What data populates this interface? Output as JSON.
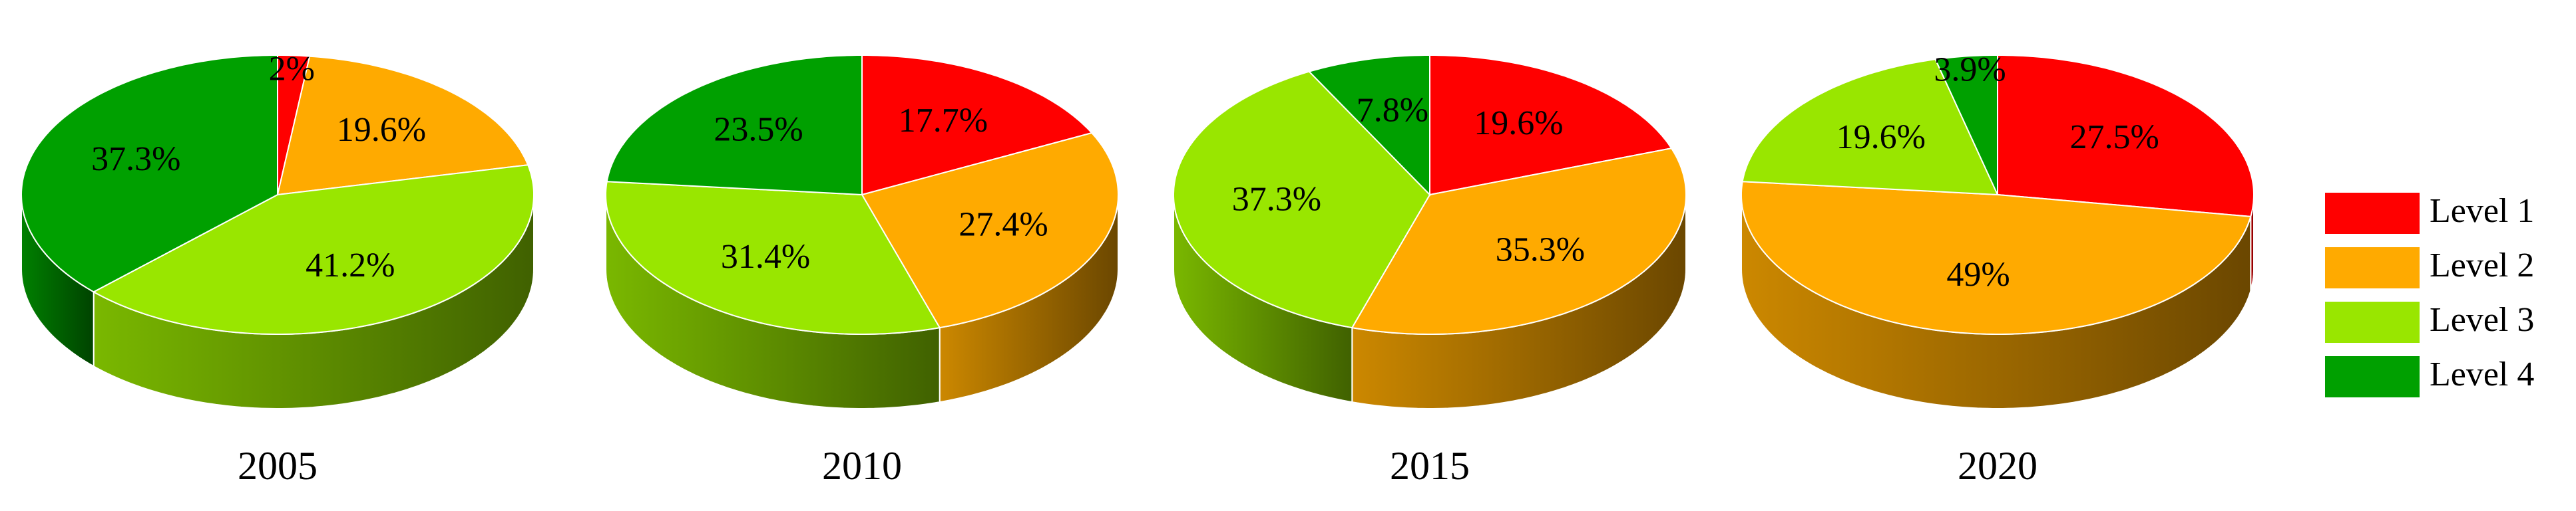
{
  "chart_data": [
    {
      "type": "pie3d",
      "title": "2005",
      "categories": [
        "Level 1",
        "Level 2",
        "Level 3",
        "Level 4"
      ],
      "values": [
        2,
        19.6,
        41.2,
        37.3
      ],
      "value_labels": [
        "2%",
        "19.6%",
        "41.2%",
        "37.3%"
      ],
      "colors": [
        "#ff0000",
        "#ffaa00",
        "#99e600",
        "#00a000"
      ]
    },
    {
      "type": "pie3d",
      "title": "2010",
      "categories": [
        "Level 1",
        "Level 2",
        "Level 3",
        "Level 4"
      ],
      "values": [
        17.7,
        27.4,
        31.4,
        23.5
      ],
      "value_labels": [
        "17.7%",
        "27.4%",
        "31.4%",
        "23.5%"
      ],
      "colors": [
        "#ff0000",
        "#ffaa00",
        "#99e600",
        "#00a000"
      ]
    },
    {
      "type": "pie3d",
      "title": "2015",
      "categories": [
        "Level 1",
        "Level 2",
        "Level 3",
        "Level 4"
      ],
      "values": [
        19.6,
        35.3,
        37.3,
        7.8
      ],
      "value_labels": [
        "19.6%",
        "35.3%",
        "37.3%",
        "7.8%"
      ],
      "colors": [
        "#ff0000",
        "#ffaa00",
        "#99e600",
        "#00a000"
      ]
    },
    {
      "type": "pie3d",
      "title": "2020",
      "categories": [
        "Level 1",
        "Level 2",
        "Level 3",
        "Level 4"
      ],
      "values": [
        27.5,
        49,
        19.6,
        3.9
      ],
      "value_labels": [
        "27.5%",
        "49%",
        "19.6%",
        "3.9%"
      ],
      "colors": [
        "#ff0000",
        "#ffaa00",
        "#99e600",
        "#00a000"
      ]
    }
  ]
}
